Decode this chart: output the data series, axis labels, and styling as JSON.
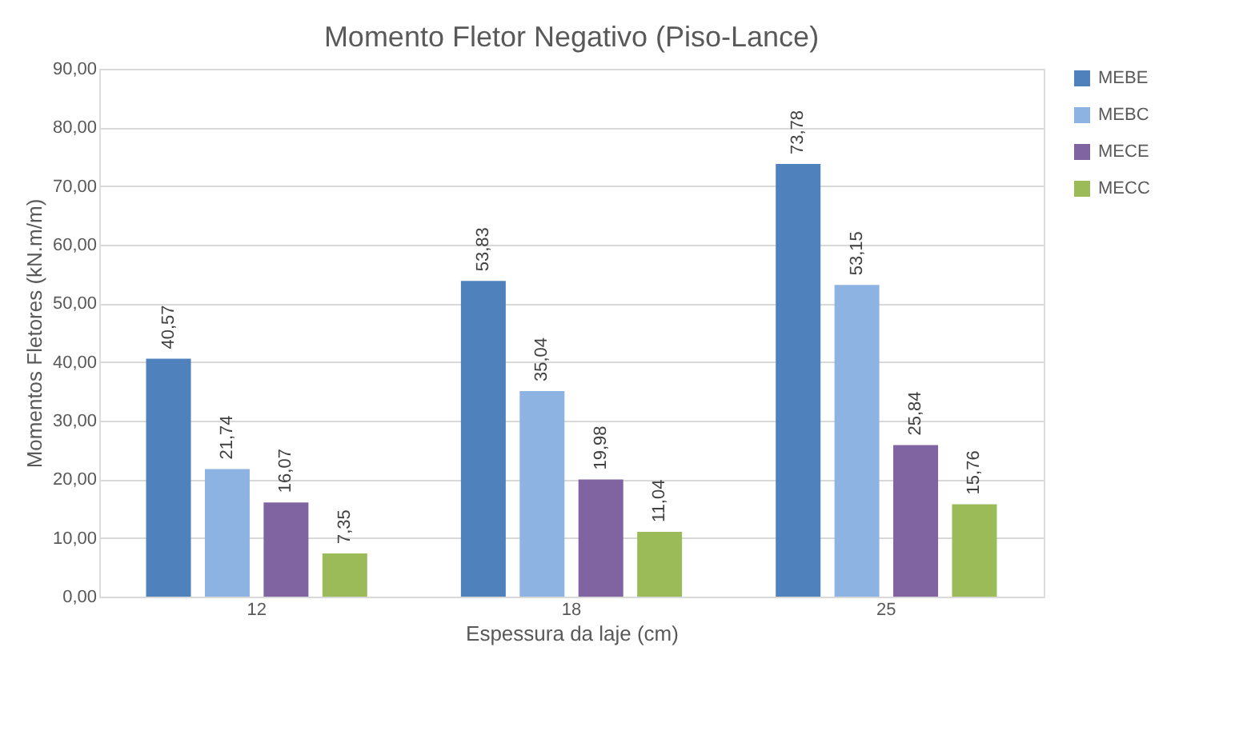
{
  "chart_data": {
    "type": "bar",
    "title": "Momento Fletor Negativo (Piso-Lance)",
    "xlabel": "Espessura da laje (cm)",
    "ylabel": "Momentos Fletores (kN.m/m)",
    "categories": [
      "12",
      "18",
      "25"
    ],
    "series": [
      {
        "name": "MEBE",
        "color": "#4f81bd",
        "values": [
          40.57,
          53.83,
          73.78
        ],
        "value_labels": [
          "40,57",
          "53,83",
          "73,78"
        ]
      },
      {
        "name": "MEBC",
        "color": "#8db3e2",
        "values": [
          21.74,
          35.04,
          53.15
        ],
        "value_labels": [
          "21,74",
          "35,04",
          "53,15"
        ]
      },
      {
        "name": "MECE",
        "color": "#8064a2",
        "values": [
          16.07,
          19.98,
          25.84
        ],
        "value_labels": [
          "16,07",
          "19,98",
          "25,84"
        ]
      },
      {
        "name": "MECC",
        "color": "#9bbb59",
        "values": [
          7.35,
          11.04,
          15.76
        ],
        "value_labels": [
          "7,35",
          "11,04",
          "15,76"
        ]
      }
    ],
    "ylim": [
      0,
      90
    ],
    "yticks": [
      {
        "value": 0,
        "label": "0,00"
      },
      {
        "value": 10,
        "label": "10,00"
      },
      {
        "value": 20,
        "label": "20,00"
      },
      {
        "value": 30,
        "label": "30,00"
      },
      {
        "value": 40,
        "label": "40,00"
      },
      {
        "value": 50,
        "label": "50,00"
      },
      {
        "value": 60,
        "label": "60,00"
      },
      {
        "value": 70,
        "label": "70,00"
      },
      {
        "value": 80,
        "label": "80,00"
      },
      {
        "value": 90,
        "label": "90,00"
      }
    ],
    "grid": "y",
    "legend": "right"
  }
}
